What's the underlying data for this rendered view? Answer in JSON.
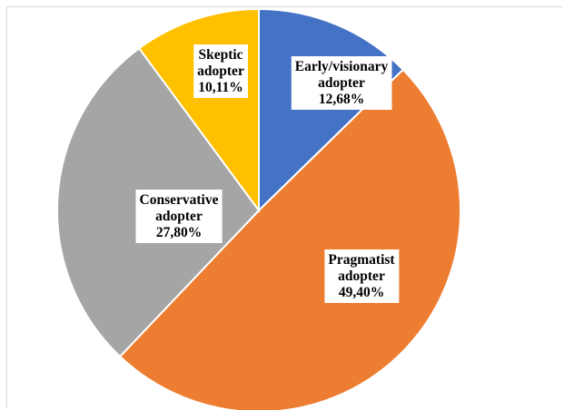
{
  "chart_data": {
    "type": "pie",
    "title": "",
    "slices": [
      {
        "label_lines": [
          "Early/visionary",
          "adopter",
          "12,68%"
        ],
        "value": 12.68,
        "color": "#4472C4"
      },
      {
        "label_lines": [
          "Pragmatist",
          "adopter",
          "49,40%"
        ],
        "value": 49.4,
        "color": "#ED7D31"
      },
      {
        "label_lines": [
          "Conservative",
          "adopter",
          "27,80%"
        ],
        "value": 27.8,
        "color": "#A5A5A5"
      },
      {
        "label_lines": [
          "Skeptic",
          "adopter",
          "10,11%"
        ],
        "value": 10.11,
        "color": "#FFC000"
      }
    ],
    "start_angle_deg": 0,
    "direction": "clockwise",
    "legend": "none",
    "data_labels": "inside"
  }
}
